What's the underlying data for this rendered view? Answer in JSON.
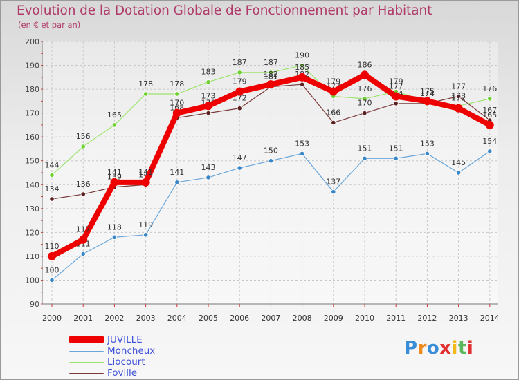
{
  "title": "Evolution de la Dotation Globale de Fonctionnement par Habitant",
  "subtitle": "(en € et par an)",
  "logo": [
    "P",
    "r",
    "o",
    "x",
    "i",
    "t",
    "i"
  ],
  "chart_data": {
    "type": "line",
    "title": "Evolution de la Dotation Globale de Fonctionnement par Habitant",
    "subtitle": "(en € et par an)",
    "x": [
      2000,
      2001,
      2002,
      2003,
      2004,
      2005,
      2006,
      2007,
      2008,
      2009,
      2010,
      2011,
      2012,
      2013,
      2014
    ],
    "ylim": [
      90,
      200
    ],
    "yticks": [
      90,
      100,
      110,
      120,
      130,
      140,
      150,
      160,
      170,
      180,
      190,
      200
    ],
    "grid": true,
    "series": [
      {
        "name": "Moncheux",
        "color": "#6aa6d9",
        "marker": "#3a87c8",
        "values": [
          100,
          111,
          118,
          119,
          141,
          143,
          147,
          150,
          153,
          137,
          151,
          151,
          153,
          145,
          154
        ]
      },
      {
        "name": "Liocourt",
        "color": "#9be36b",
        "marker": "#6fd032",
        "values": [
          144,
          156,
          165,
          178,
          178,
          183,
          187,
          187,
          190,
          177,
          176,
          179,
          175,
          173,
          176
        ]
      },
      {
        "name": "Foville",
        "color": "#7a3a3a",
        "marker": "#5a1f1f",
        "values": [
          134,
          136,
          139,
          140,
          168,
          170,
          172,
          181,
          182,
          166,
          170,
          174,
          174,
          177,
          167
        ]
      },
      {
        "name": "JUVILLE",
        "color": "#ee0000",
        "marker": "#ee0000",
        "values": [
          110,
          117,
          141,
          141,
          170,
          173,
          179,
          182,
          185,
          179,
          186,
          177,
          175,
          172,
          165
        ]
      }
    ],
    "legend": [
      "JUVILLE",
      "Moncheux",
      "Liocourt",
      "Foville"
    ],
    "legend_position": "bottom-left"
  }
}
